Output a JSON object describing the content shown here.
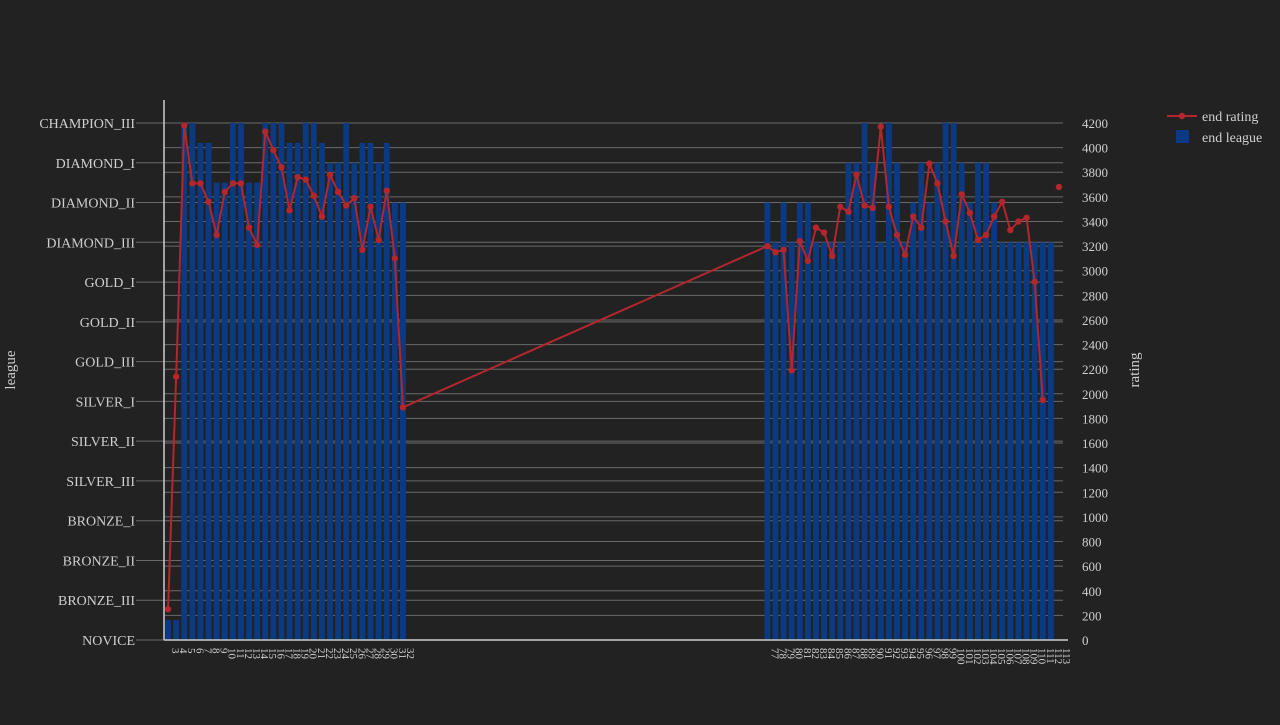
{
  "chart_data": {
    "type": "bar",
    "xaxis": {
      "ticks": [
        "3",
        "4",
        "5",
        "6",
        "7",
        "8",
        "9",
        "10",
        "11",
        "12",
        "13",
        "14",
        "15",
        "16",
        "17",
        "18",
        "19",
        "20",
        "21",
        "22",
        "23",
        "24",
        "25",
        "26",
        "27",
        "28",
        "29",
        "30",
        "31",
        "32",
        "77",
        "78",
        "79",
        "80",
        "81",
        "82",
        "83",
        "84",
        "85",
        "86",
        "87",
        "88",
        "89",
        "90",
        "91",
        "92",
        "93",
        "94",
        "95",
        "96",
        "97",
        "98",
        "99",
        "100",
        "101",
        "102",
        "103",
        "104",
        "105",
        "106",
        "107",
        "108",
        "109",
        "110",
        "111",
        "112",
        "113"
      ]
    },
    "yaxis_left": {
      "label": "league",
      "categories": [
        "NOVICE",
        "BRONZE_III",
        "BRONZE_II",
        "BRONZE_I",
        "SILVER_III",
        "SILVER_II",
        "SILVER_I",
        "GOLD_III",
        "GOLD_II",
        "GOLD_I",
        "DIAMOND_III",
        "DIAMOND_II",
        "DIAMOND_I",
        "CHAMPION_III"
      ]
    },
    "yaxis_right": {
      "label": "rating",
      "range": [
        0,
        4200
      ],
      "ticks": [
        "0",
        "200",
        "400",
        "600",
        "800",
        "1000",
        "1200",
        "1400",
        "1600",
        "1800",
        "2000",
        "2200",
        "2400",
        "2600",
        "2800",
        "3000",
        "3200",
        "3400",
        "3600",
        "3800",
        "4000",
        "4200"
      ]
    },
    "grid": true,
    "legend_position": "top-right",
    "series": [
      {
        "name": "end league",
        "type": "bar",
        "color": "#0b3a82",
        "x": [
          3,
          4,
          5,
          6,
          7,
          8,
          9,
          10,
          11,
          12,
          13,
          14,
          15,
          16,
          17,
          18,
          19,
          20,
          21,
          22,
          23,
          24,
          25,
          26,
          27,
          28,
          29,
          30,
          31,
          32,
          77,
          78,
          79,
          80,
          81,
          82,
          83,
          84,
          85,
          86,
          87,
          88,
          89,
          90,
          91,
          92,
          93,
          94,
          95,
          96,
          97,
          98,
          99,
          100,
          101,
          102,
          103,
          104,
          105,
          106,
          107,
          108,
          109,
          110,
          111,
          112,
          113
        ],
        "values": [
          0.5,
          0.5,
          13,
          13,
          12.5,
          12.5,
          11.5,
          11.5,
          13,
          13,
          11.5,
          11.5,
          13,
          13,
          13,
          12.5,
          12.5,
          13,
          13,
          12.5,
          12,
          12,
          13,
          12,
          12.5,
          12.5,
          12,
          12.5,
          11,
          11,
          11,
          10,
          11,
          10,
          11,
          11,
          10,
          10,
          10,
          10,
          12,
          12,
          13,
          12,
          10,
          13,
          12,
          10,
          11,
          12,
          11,
          12,
          13,
          13,
          12,
          11,
          12,
          12,
          11,
          10,
          10,
          10,
          10,
          10,
          10,
          10,
          null
        ]
      },
      {
        "name": "end rating",
        "type": "line",
        "color": "#b3262e",
        "x": [
          3,
          4,
          5,
          6,
          7,
          8,
          9,
          10,
          11,
          12,
          13,
          14,
          15,
          16,
          17,
          18,
          19,
          20,
          21,
          22,
          23,
          24,
          25,
          26,
          27,
          28,
          29,
          30,
          31,
          32,
          77,
          78,
          79,
          80,
          81,
          82,
          83,
          84,
          85,
          86,
          87,
          88,
          89,
          90,
          91,
          92,
          93,
          94,
          95,
          96,
          97,
          98,
          99,
          100,
          101,
          102,
          103,
          104,
          105,
          106,
          107,
          108,
          109,
          110,
          111,
          112,
          113
        ],
        "values": [
          250,
          2140,
          4180,
          3710,
          3710,
          3560,
          3290,
          3640,
          3710,
          3710,
          3350,
          3210,
          4130,
          3980,
          3840,
          3490,
          3760,
          3740,
          3610,
          3440,
          3780,
          3640,
          3530,
          3590,
          3170,
          3520,
          3250,
          3650,
          3100,
          1890,
          3200,
          3150,
          3170,
          2190,
          3240,
          3080,
          3350,
          3310,
          3120,
          3520,
          3480,
          3780,
          3530,
          3510,
          4170,
          3520,
          3290,
          3130,
          3440,
          3350,
          3870,
          3710,
          3400,
          3120,
          3620,
          3470,
          3250,
          3290,
          3440,
          3560,
          3330,
          3400,
          3430,
          2910,
          1950,
          null,
          3680
        ]
      }
    ]
  }
}
